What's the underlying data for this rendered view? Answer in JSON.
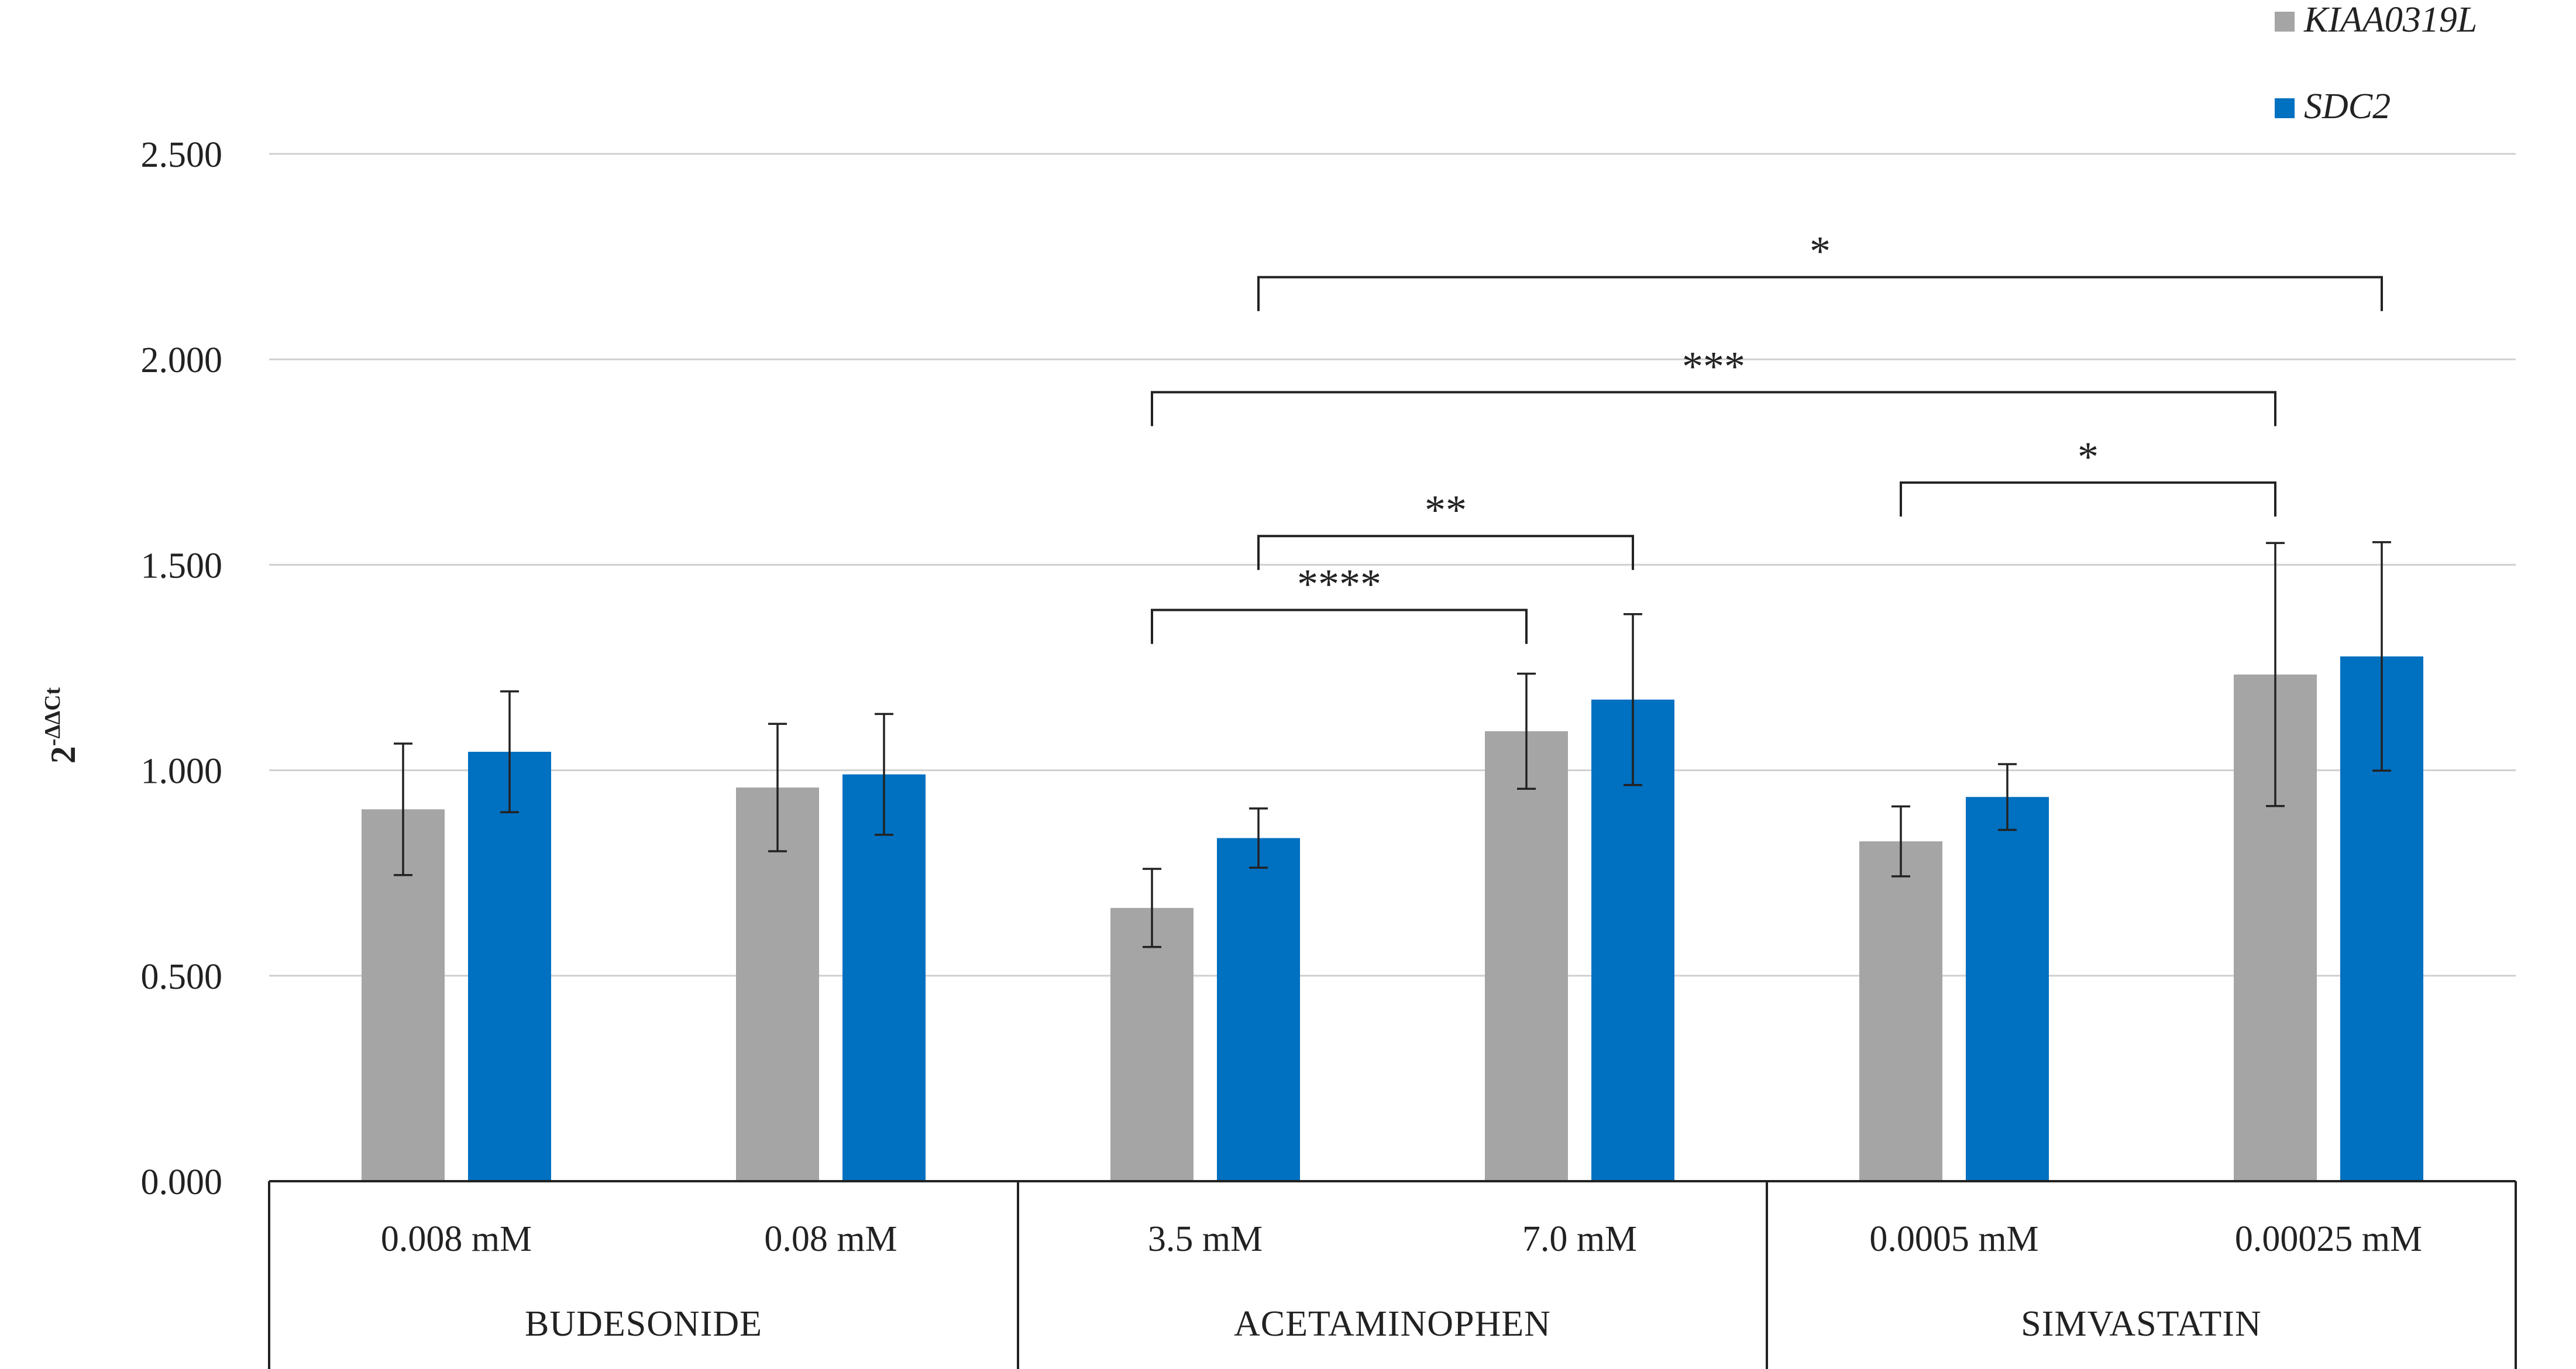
{
  "chart_data": {
    "type": "bar",
    "title": "",
    "ylabel_base": "2",
    "ylabel_exp": "-ΔΔCt",
    "xlabel": "",
    "ylim": [
      0,
      2.5
    ],
    "yticks": [
      0,
      0.5,
      1.0,
      1.5,
      2.0,
      2.5
    ],
    "ytick_labels": [
      "0.000",
      "0.500",
      "1.000",
      "1.500",
      "2.000",
      "2.500"
    ],
    "grid": true,
    "legend_position": "top-right",
    "categories": [
      "0.008 mM",
      "0.08 mM",
      "3.5 mM",
      "7.0 mM",
      "0.0005 mM",
      "0.00025 mM"
    ],
    "groups": [
      {
        "label": "BUDESONIDE",
        "from": 0,
        "to": 1
      },
      {
        "label": "ACETAMINOPHEN",
        "from": 2,
        "to": 3
      },
      {
        "label": "SIMVASTATIN",
        "from": 4,
        "to": 5
      }
    ],
    "series": [
      {
        "name": "KIAA0319L",
        "color": "#a5a5a5",
        "values": [
          0.905,
          0.958,
          0.665,
          1.095,
          0.827,
          1.233
        ],
        "errors": [
          0.16,
          0.155,
          0.095,
          0.14,
          0.085,
          0.32
        ]
      },
      {
        "name": "SDC2",
        "color": "#0070c0",
        "values": [
          1.045,
          0.99,
          0.835,
          1.172,
          0.935,
          1.277
        ],
        "errors": [
          0.147,
          0.147,
          0.072,
          0.208,
          0.08,
          0.278
        ]
      }
    ],
    "significance": [
      {
        "label": "****",
        "from_cat": 2,
        "from_series": 0,
        "to_cat": 3,
        "to_series": 0,
        "level": 1.39
      },
      {
        "label": "**",
        "from_cat": 2,
        "from_series": 1,
        "to_cat": 3,
        "to_series": 1,
        "level": 1.57
      },
      {
        "label": "*",
        "from_cat": 4,
        "from_series": 0,
        "to_cat": 5,
        "to_series": 0,
        "level": 1.7
      },
      {
        "label": "***",
        "from_cat": 2,
        "from_series": 0,
        "to_cat": 5,
        "to_series": 0,
        "level": 1.92
      },
      {
        "label": "*",
        "from_cat": 2,
        "from_series": 1,
        "to_cat": 5,
        "to_series": 1,
        "level": 2.2
      }
    ]
  }
}
